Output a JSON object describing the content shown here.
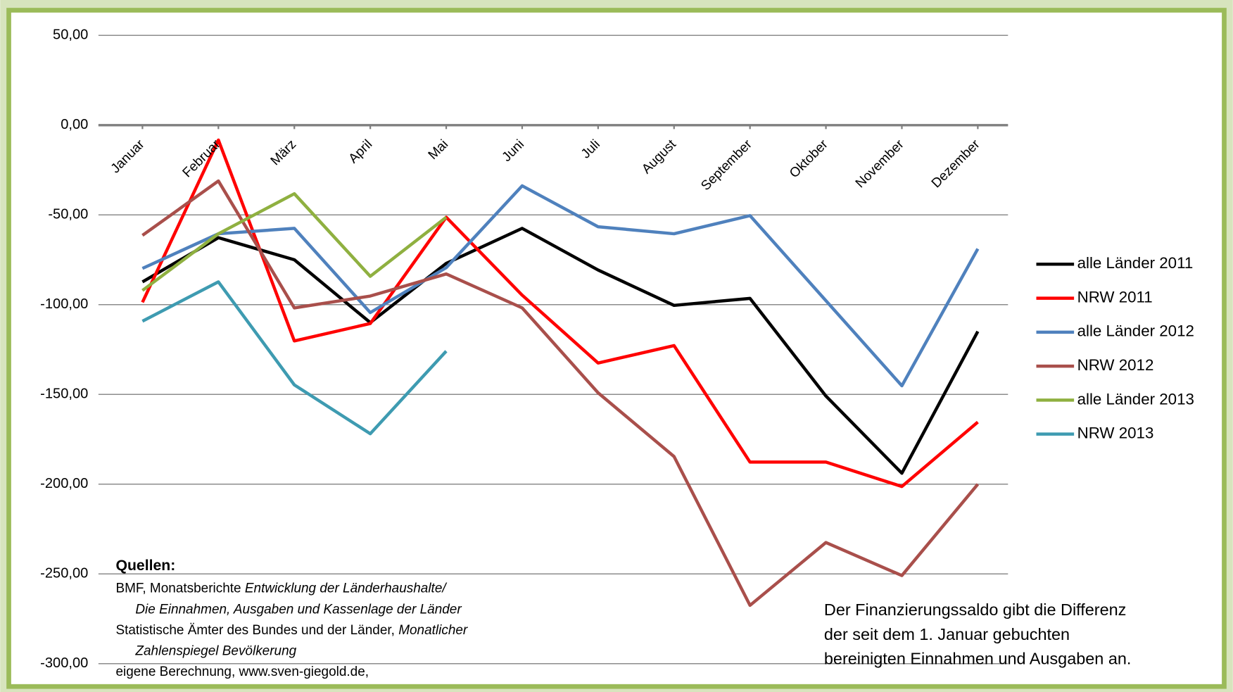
{
  "chart_data": {
    "type": "line",
    "categories": [
      "Januar",
      "Februar",
      "März",
      "April",
      "Mai",
      "Juni",
      "Juli",
      "August",
      "September",
      "Oktober",
      "November",
      "Dezember"
    ],
    "series": [
      {
        "name": "alle Länder 2011",
        "color": "#000000",
        "values": [
          -87.3,
          -62.7,
          -75.0,
          -110.0,
          -77.0,
          -57.5,
          -80.7,
          -100.4,
          -96.5,
          -150.9,
          -193.9,
          -114.9
        ]
      },
      {
        "name": "NRW 2011",
        "color": "#ff0000",
        "values": [
          -98.7,
          -8.3,
          -120.2,
          -110.5,
          -51.3,
          -94.7,
          -132.5,
          -122.8,
          -187.7,
          -187.7,
          -201.3,
          -165.4
        ]
      },
      {
        "name": "alle Länder 2012",
        "color": "#4f81bd",
        "values": [
          -79.8,
          -60.5,
          -57.5,
          -104.4,
          -79.4,
          -33.8,
          -56.6,
          -60.5,
          -50.4,
          -97.8,
          -145.2,
          -68.9
        ]
      },
      {
        "name": "NRW 2012",
        "color": "#a94f4b",
        "values": [
          -61.4,
          -31.1,
          -101.8,
          -95.2,
          -82.9,
          -101.8,
          -149.1,
          -184.6,
          -267.5,
          -232.5,
          -250.9,
          -200.0
        ]
      },
      {
        "name": "alle Länder 2013",
        "color": "#8fb040",
        "values": [
          -92.1,
          -60.5,
          -38.2,
          -84.2,
          -51.3,
          null,
          null,
          null,
          null,
          null,
          null,
          null
        ]
      },
      {
        "name": "NRW 2013",
        "color": "#3e9bb1",
        "values": [
          -109.2,
          -87.3,
          -144.7,
          -171.9,
          -125.9,
          null,
          null,
          null,
          null,
          null,
          null,
          null
        ]
      }
    ],
    "ylim": [
      -300,
      50
    ],
    "yticks": [
      {
        "value": -300,
        "label": "-300,00"
      },
      {
        "value": -250,
        "label": "-250,00"
      },
      {
        "value": -200,
        "label": "-200,00"
      },
      {
        "value": -150,
        "label": "-150,00"
      },
      {
        "value": -100,
        "label": "-100,00"
      },
      {
        "value": -50,
        "label": "-50,00"
      },
      {
        "value": 0,
        "label": "0,00"
      },
      {
        "value": 50,
        "label": "50,00"
      }
    ],
    "grid": true,
    "legend": "right",
    "sources_title": "Quellen:",
    "sources": [
      [
        {
          "text": "BMF,  Monatsberichte ",
          "italic": false
        },
        {
          "text": "Entwicklung der Länderhaushalte/",
          "italic": true
        }
      ],
      [
        {
          "text": "Die Einnahmen, Ausgaben und Kassenlage der Länder",
          "italic": true
        }
      ],
      [
        {
          "text": "Statistische Ämter des Bundes und der Länder, ",
          "italic": false
        },
        {
          "text": "Monatlicher",
          "italic": true
        }
      ],
      [
        {
          "text": "Zahlenspiegel Bevölkerung",
          "italic": true
        }
      ],
      [
        {
          "text": "eigene Berechnung, www.sven-giegold.de,",
          "italic": false
        }
      ]
    ],
    "note": [
      "Der Finanzierungssaldo gibt die Differenz",
      "der seit dem 1. Januar gebuchten",
      "bereinigten Einnahmen und Ausgaben an."
    ]
  }
}
